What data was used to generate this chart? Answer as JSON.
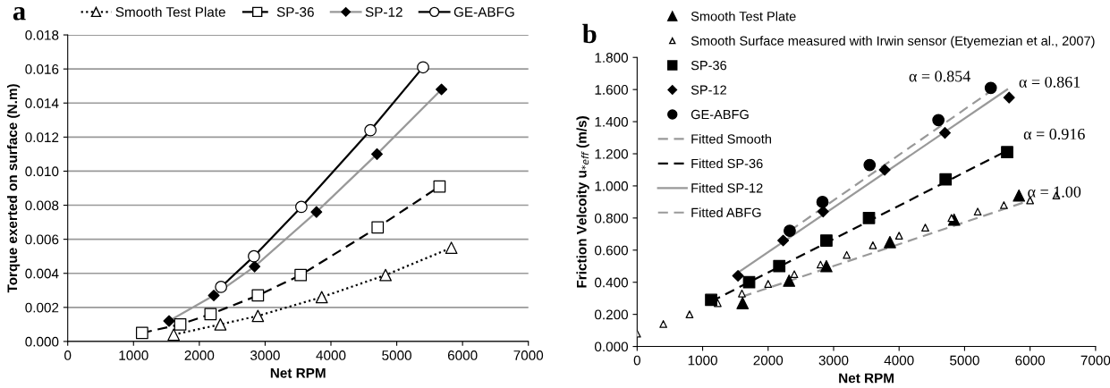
{
  "chart_data": [
    {
      "type": "line",
      "title": "a",
      "xlabel": "Net RPM",
      "ylabel": "Torque exerted on surface (N.m)",
      "xlim": [
        0,
        7000
      ],
      "xticks": [
        0,
        1000,
        2000,
        3000,
        4000,
        5000,
        6000,
        7000
      ],
      "ylim": [
        0,
        0.018
      ],
      "yticks": [
        {
          "value": 0,
          "label": "0.000"
        },
        {
          "value": 0.002,
          "label": "0.002"
        },
        {
          "value": 0.004,
          "label": "0.004"
        },
        {
          "value": 0.006,
          "label": "0.006"
        },
        {
          "value": 0.008,
          "label": "0.008"
        },
        {
          "value": 0.01,
          "label": "0.010"
        },
        {
          "value": 0.012,
          "label": "0.012"
        },
        {
          "value": 0.014,
          "label": "0.014"
        },
        {
          "value": 0.016,
          "label": "0.016"
        },
        {
          "value": 0.018,
          "label": "0.018"
        }
      ],
      "grid": "y",
      "legend": "top",
      "series": [
        {
          "name": "Smooth Test Plate",
          "color": "#000000",
          "marker": "triangle",
          "line_style": "dotted",
          "x": [
            1610,
            2320,
            2890,
            3860,
            4830,
            5830
          ],
          "values": [
            0.0004,
            0.001,
            0.0015,
            0.0026,
            0.0039,
            0.0055
          ],
          "colors": [
            "#ffffff",
            "#ffffff",
            "#ffffff",
            "#ffffff",
            "#ffffff",
            "#ffffff"
          ]
        },
        {
          "name": "SP-36",
          "color": "#000000",
          "marker": "square",
          "line_style": "dashed",
          "x": [
            1130,
            1710,
            2170,
            2890,
            3540,
            4710,
            5650
          ],
          "values": [
            0.0005,
            0.001,
            0.0016,
            0.0027,
            0.0039,
            0.0067,
            0.0091
          ],
          "colors": [
            "#ffffff",
            "#ffffff",
            "#ffffff",
            "#ffffff",
            "#ffffff",
            "#ffffff",
            "#ffffff"
          ]
        },
        {
          "name": "SP-12",
          "color": "#999999",
          "marker": "diamond",
          "line_style": "solid",
          "x": [
            1540,
            2220,
            2840,
            3780,
            4700,
            5680
          ],
          "values": [
            0.0012,
            0.0027,
            0.0044,
            0.0076,
            0.011,
            0.0148
          ],
          "colors": [
            "#000000",
            "#000000",
            "#000000",
            "#000000",
            "#000000",
            "#000000"
          ]
        },
        {
          "name": "GE-ABFG",
          "color": "#000000",
          "marker": "circle",
          "line_style": "solid",
          "x": [
            2330,
            2830,
            3550,
            4600,
            5400
          ],
          "values": [
            0.0032,
            0.005,
            0.0079,
            0.0124,
            0.0161
          ],
          "colors": [
            "#ffffff",
            "#ffffff",
            "#ffffff",
            "#ffffff",
            "#ffffff"
          ]
        }
      ]
    },
    {
      "type": "scatter",
      "title": "b",
      "xlabel": "Net RPM",
      "ylabel": "Friction Velcoity u$_{*eff}$ (m/s)",
      "xlim": [
        0,
        7000
      ],
      "xticks": [
        0,
        1000,
        2000,
        3000,
        4000,
        5000,
        6000,
        7000
      ],
      "ylim": [
        0,
        1.8
      ],
      "yticks": [
        {
          "value": 0,
          "label": "0.000"
        },
        {
          "value": 0.2,
          "label": "0.200"
        },
        {
          "value": 0.4,
          "label": "0.400"
        },
        {
          "value": 0.6,
          "label": "0.600"
        },
        {
          "value": 0.8,
          "label": "0.800"
        },
        {
          "value": 1.0,
          "label": "1.000"
        },
        {
          "value": 1.2,
          "label": "1.200"
        },
        {
          "value": 1.4,
          "label": "1.400"
        },
        {
          "value": 1.6,
          "label": "1.600"
        },
        {
          "value": 1.8,
          "label": "1.800"
        }
      ],
      "grid": false,
      "legend": "top left",
      "annotations": [
        "α = 0.854",
        "α = 0.861",
        "α = 0.916",
        "α = 1.00"
      ],
      "series": [
        {
          "name": "Smooth Test Plate",
          "color": "#000000",
          "marker": "triangle",
          "x": [
            1610,
            2320,
            2890,
            3860,
            4840,
            5830
          ],
          "values": [
            0.27,
            0.41,
            0.5,
            0.65,
            0.79,
            0.94
          ]
        },
        {
          "name": "Smooth Surface measured with Irwin sensor (Etyemezian et al., 2007)",
          "color": "#000000",
          "marker": "triangle",
          "x": [
            0,
            400,
            800,
            1230,
            1600,
            2000,
            2400,
            2800,
            3200,
            3600,
            4000,
            4400,
            4800,
            5200,
            5600,
            6000,
            6400
          ],
          "values": [
            0.08,
            0.14,
            0.2,
            0.27,
            0.33,
            0.39,
            0.45,
            0.51,
            0.57,
            0.63,
            0.69,
            0.74,
            0.8,
            0.84,
            0.88,
            0.91,
            0.94
          ],
          "colors": [
            "#ffffff",
            "#ffffff",
            "#ffffff",
            "#ffffff",
            "#ffffff",
            "#ffffff",
            "#ffffff",
            "#ffffff",
            "#ffffff",
            "#ffffff",
            "#ffffff",
            "#ffffff",
            "#ffffff",
            "#ffffff",
            "#ffffff",
            "#ffffff",
            "#ffffff"
          ]
        },
        {
          "name": "SP-36",
          "color": "#000000",
          "marker": "square",
          "x": [
            1130,
            1710,
            2170,
            2890,
            3540,
            4710,
            5650
          ],
          "values": [
            0.29,
            0.4,
            0.5,
            0.66,
            0.8,
            1.04,
            1.21
          ]
        },
        {
          "name": "SP-12",
          "color": "#000000",
          "marker": "diamond",
          "x": [
            1540,
            2230,
            2840,
            3780,
            4700,
            5680
          ],
          "values": [
            0.44,
            0.66,
            0.84,
            1.1,
            1.33,
            1.55
          ]
        },
        {
          "name": "GE-ABFG",
          "color": "#000000",
          "marker": "circle",
          "x": [
            2330,
            2830,
            3550,
            4600,
            5400
          ],
          "values": [
            0.72,
            0.9,
            1.13,
            1.41,
            1.61
          ]
        },
        {
          "name": "Fitted Smooth",
          "type": "line",
          "color": "#999999",
          "line_style": "dashed",
          "x": [
            1600,
            6000
          ],
          "values": [
            0.31,
            0.91
          ]
        },
        {
          "name": "Fitted SP-36",
          "type": "line",
          "color": "#000000",
          "line_style": "dashed",
          "x": [
            1130,
            5650
          ],
          "values": [
            0.28,
            1.22
          ]
        },
        {
          "name": "Fitted SP-12",
          "type": "line",
          "color": "#999999",
          "line_style": "solid",
          "x": [
            1540,
            5650
          ],
          "values": [
            0.46,
            1.6
          ]
        },
        {
          "name": "Fitted ABFG",
          "type": "line",
          "color": "#999999",
          "line_style": "dashed",
          "x": [
            2330,
            5400
          ],
          "values": [
            0.72,
            1.59
          ]
        }
      ]
    }
  ]
}
